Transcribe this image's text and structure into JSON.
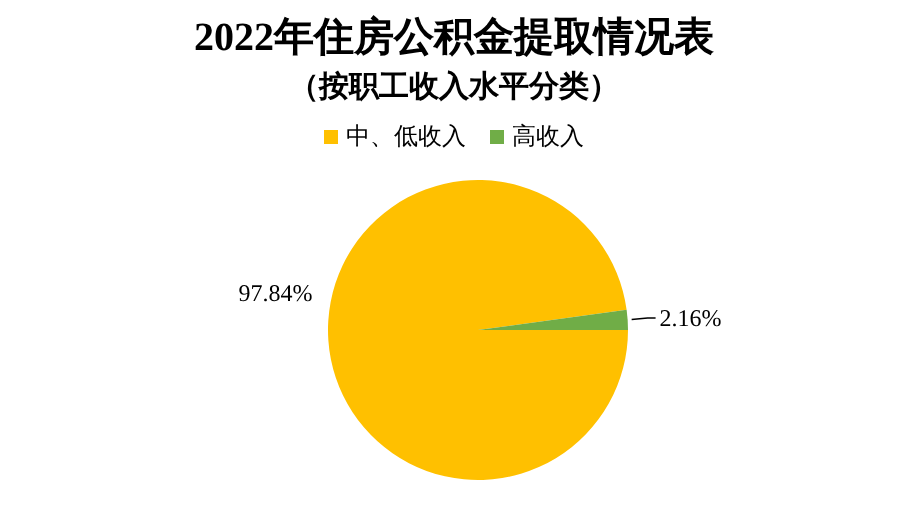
{
  "chart_data": {
    "type": "pie",
    "title": "2022年住房公积金提取情况表",
    "subtitle": "（按职工收入水平分类）",
    "categories": [
      "中、低收入",
      "高收入"
    ],
    "values": [
      97.84,
      2.16
    ],
    "colors": [
      "#ffc000",
      "#70ad47"
    ],
    "value_labels": [
      "97.84%",
      "2.16%"
    ],
    "legend": "top"
  }
}
